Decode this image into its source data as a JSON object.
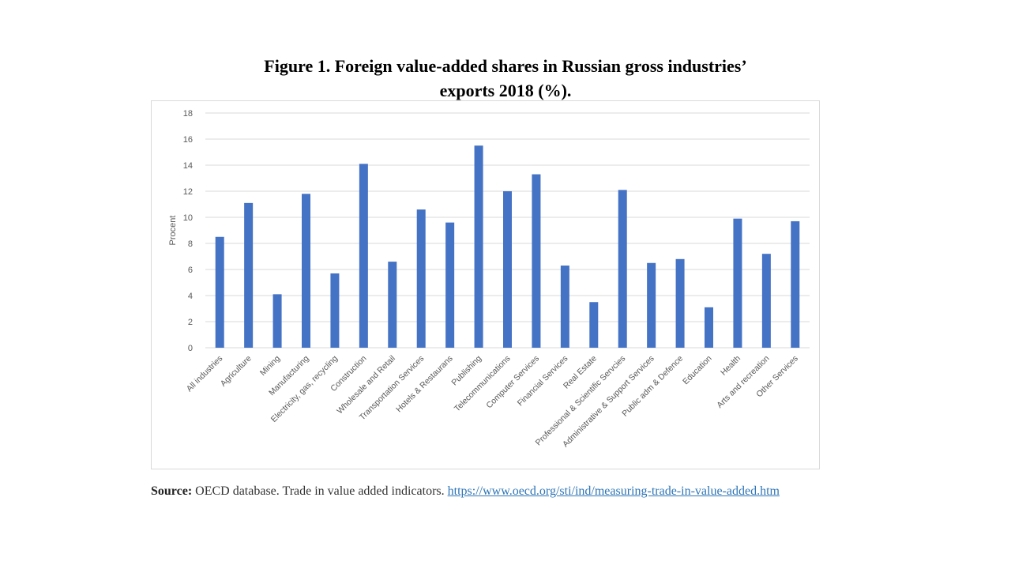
{
  "figure": {
    "title_line1": "Figure 1. Foreign value-added shares in Russian gross industries’",
    "title_line2": "exports 2018 (%)."
  },
  "source": {
    "label": "Source:",
    "text": "OECD database. Trade in value added indicators.",
    "link": "https://www.oecd.org/sti/ind/measuring-trade-in-value-added.htm"
  },
  "chart_data": {
    "type": "bar",
    "title": "Figure 1. Foreign value-added shares in Russian gross industries’ exports 2018 (%).",
    "xlabel": "",
    "ylabel": "Procent",
    "ylim": [
      0,
      18
    ],
    "yticks": [
      0,
      2,
      4,
      6,
      8,
      10,
      12,
      14,
      16,
      18
    ],
    "grid": true,
    "legend": "none",
    "bar_color": "#4472c4",
    "categories": [
      "All industries",
      "Agriculture",
      "Mining",
      "Manufacturing",
      "Electricity, gas, recycling",
      "Construction",
      "Wholesale and Retail",
      "Transportation Services",
      "Hotels & Restaurans",
      "Publishing",
      "Telecommunications",
      "Computer Services",
      "Financial Services",
      "Real Estate",
      "Professional & Scientific Servcies",
      "Administrative & Support Services",
      "Public adm & Defence",
      "Education",
      "Health",
      "Arts and recreation",
      "Other Services"
    ],
    "values": [
      8.5,
      11.1,
      4.1,
      11.8,
      5.7,
      14.1,
      6.6,
      10.6,
      9.6,
      15.5,
      12.0,
      13.3,
      6.3,
      3.5,
      12.1,
      6.5,
      6.8,
      3.1,
      9.9,
      7.2,
      9.7
    ]
  }
}
